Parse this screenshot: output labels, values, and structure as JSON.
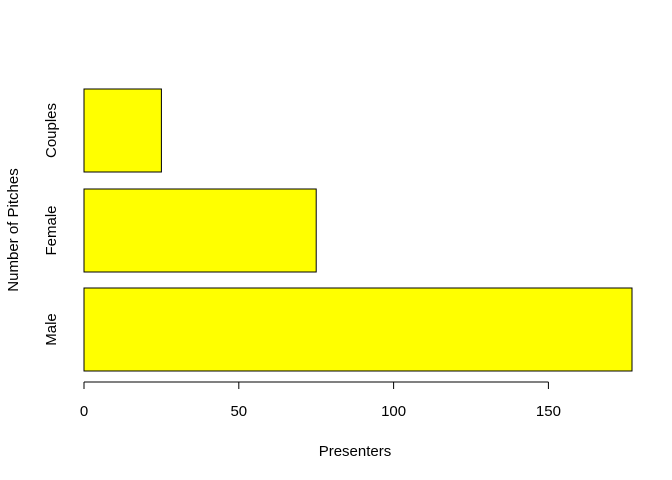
{
  "chart_data": {
    "type": "bar",
    "orientation": "horizontal",
    "categories": [
      "Male",
      "Female",
      "Couples"
    ],
    "values": [
      177,
      75,
      25
    ],
    "title": "",
    "xlabel": "Presenters",
    "ylabel": "Number of Pitches",
    "xlim": [
      0,
      177
    ],
    "xticks": [
      0,
      50,
      100,
      150
    ],
    "grid": false,
    "bar_color": "#ffff00",
    "bar_border_color": "#000000"
  }
}
